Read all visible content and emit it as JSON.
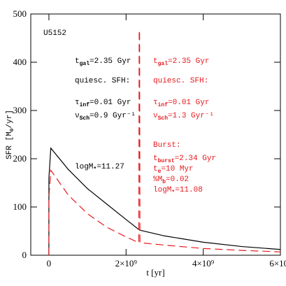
{
  "chart_data": {
    "type": "line",
    "xlabel": "t [yr]",
    "ylabel": {
      "parts": [
        {
          "text": "SFR [M"
        },
        {
          "sub": "⊙"
        },
        {
          "text": "/yr]"
        }
      ]
    },
    "xlim": [
      -470000000,
      6000000000
    ],
    "ylim": [
      0,
      500
    ],
    "xticks": [
      0,
      {
        "value": 2000000000,
        "label": "2×10⁹"
      },
      {
        "value": 4000000000,
        "label": "4×10⁹"
      },
      {
        "value": 6000000000,
        "label": "6×10⁹"
      }
    ],
    "yticks": [
      0,
      100,
      200,
      300,
      400,
      500
    ],
    "series": [
      {
        "color": "#000000",
        "dashed": false,
        "x": [
          0,
          0,
          50000000,
          500000000,
          1000000000,
          1500000000,
          2000000000,
          2350000000,
          3000000000,
          4000000000,
          5000000000,
          6000000000
        ],
        "values": [
          0,
          160,
          222,
          178,
          138,
          106,
          74,
          52,
          40,
          27,
          18,
          12
        ]
      },
      {
        "color": "#e8191e",
        "dashed": true,
        "x": [
          0,
          0,
          50000000,
          500000000,
          1000000000,
          1500000000,
          2000000000,
          2330000000,
          2340000000,
          2350000000,
          2360000000,
          3000000000,
          4000000000,
          5000000000,
          6000000000
        ],
        "values": [
          0,
          120,
          176,
          125,
          86,
          58,
          38,
          26,
          466,
          466,
          26,
          21,
          14,
          10,
          7
        ]
      }
    ],
    "annotations": [
      {
        "color": "#000000",
        "parts": [
          {
            "text": "U5152"
          }
        ]
      },
      {
        "color": "#000000",
        "parts": [
          {
            "text": "t"
          },
          {
            "sub": "gal"
          },
          {
            "text": "=2.35 Gyr"
          }
        ]
      },
      {
        "color": "#000000",
        "parts": [
          {
            "text": "quiesc. SFH:"
          }
        ]
      },
      {
        "color": "#000000",
        "parts": [
          {
            "text": "τ"
          },
          {
            "sub": "inf"
          },
          {
            "text": "=0.01 Gyr"
          }
        ]
      },
      {
        "color": "#000000",
        "parts": [
          {
            "text": "ν"
          },
          {
            "sub": "Sch"
          },
          {
            "text": "=0.9 Gyr⁻¹"
          }
        ]
      },
      {
        "color": "#000000",
        "parts": [
          {
            "text": "logM"
          },
          {
            "sub": "*"
          },
          {
            "text": "=11.27"
          }
        ]
      },
      {
        "color": "#e8191e",
        "parts": [
          {
            "text": "t"
          },
          {
            "sub": "gal"
          },
          {
            "text": "=2.35 Gyr"
          }
        ]
      },
      {
        "color": "#e8191e",
        "parts": [
          {
            "text": "quiesc. SFH:"
          }
        ]
      },
      {
        "color": "#e8191e",
        "parts": [
          {
            "text": "τ"
          },
          {
            "sub": "inf"
          },
          {
            "text": "=0.01 Gyr"
          }
        ]
      },
      {
        "color": "#e8191e",
        "parts": [
          {
            "text": "ν"
          },
          {
            "sub": "Sch"
          },
          {
            "text": "=1.3 Gyr⁻¹"
          }
        ]
      },
      {
        "color": "#e8191e",
        "parts": [
          {
            "text": "Burst:"
          }
        ]
      },
      {
        "color": "#e8191e",
        "parts": [
          {
            "text": "t"
          },
          {
            "sub": "burst"
          },
          {
            "text": "=2.34 Gyr"
          }
        ]
      },
      {
        "color": "#e8191e",
        "parts": [
          {
            "text": "t"
          },
          {
            "sub": "e"
          },
          {
            "text": "=10 Myr"
          }
        ]
      },
      {
        "color": "#e8191e",
        "parts": [
          {
            "text": "%M"
          },
          {
            "sub": "b"
          },
          {
            "text": "=0.02"
          }
        ]
      },
      {
        "color": "#e8191e",
        "parts": [
          {
            "text": "logM"
          },
          {
            "sub": "*"
          },
          {
            "text": "=11.08"
          }
        ]
      }
    ]
  }
}
